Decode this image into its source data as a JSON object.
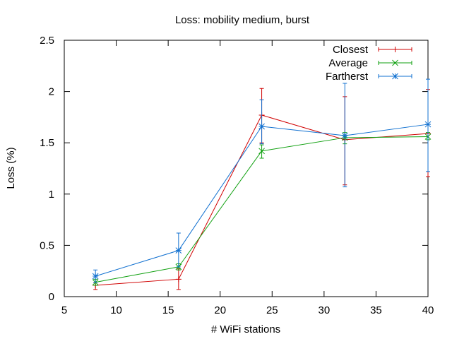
{
  "chart_data": {
    "type": "line",
    "title": "Loss: mobility medium, burst",
    "xlabel": "# WiFi stations",
    "ylabel": "Loss (%)",
    "xlim": [
      5,
      40
    ],
    "ylim": [
      0,
      2.5
    ],
    "xticks": [
      5,
      10,
      15,
      20,
      25,
      30,
      35,
      40
    ],
    "yticks": [
      0,
      0.5,
      1,
      1.5,
      2,
      2.5
    ],
    "ytick_labels": [
      "0",
      "0.5",
      "1",
      "1.5",
      "2",
      "2.5"
    ],
    "grid": false,
    "legend_position": "top-right",
    "x": [
      8,
      16,
      24,
      32,
      40
    ],
    "series": [
      {
        "name": "Closest",
        "color": "#d00000",
        "marker": "plus",
        "values": [
          0.11,
          0.17,
          1.77,
          1.53,
          1.59
        ],
        "err_low": [
          0.07,
          0.07,
          1.5,
          1.09,
          1.17
        ],
        "err_high": [
          0.14,
          0.27,
          2.03,
          1.95,
          2.02
        ]
      },
      {
        "name": "Average",
        "color": "#10a010",
        "marker": "x",
        "values": [
          0.14,
          0.29,
          1.42,
          1.55,
          1.56
        ],
        "err_low": [
          0.11,
          0.26,
          1.35,
          1.49,
          1.53
        ],
        "err_high": [
          0.17,
          0.32,
          1.48,
          1.6,
          1.6
        ]
      },
      {
        "name": "Fartherst",
        "color": "#1070d0",
        "marker": "star",
        "values": [
          0.2,
          0.45,
          1.66,
          1.57,
          1.68
        ],
        "err_low": [
          0.14,
          0.29,
          1.49,
          1.07,
          1.22
        ],
        "err_high": [
          0.26,
          0.62,
          1.92,
          2.08,
          2.12
        ]
      }
    ]
  }
}
